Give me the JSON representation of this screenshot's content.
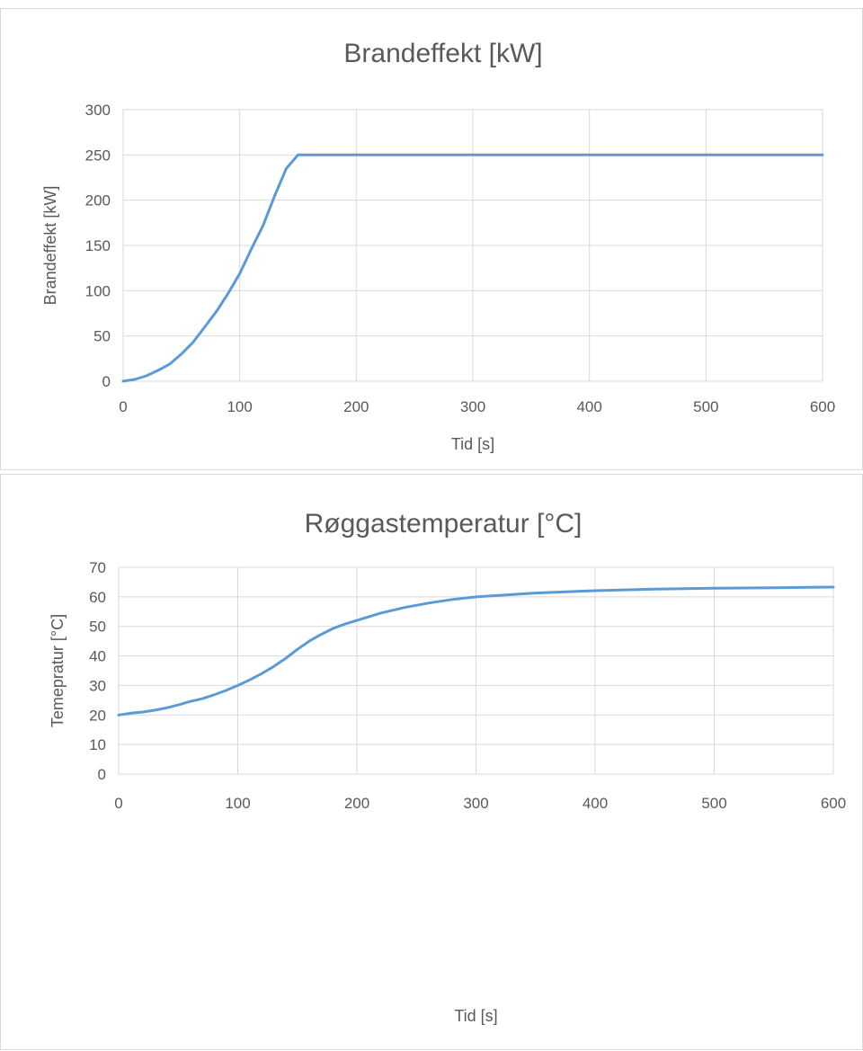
{
  "chart_data": [
    {
      "type": "line",
      "title": "Brandeffekt [kW]",
      "xlabel": "Tid [s]",
      "ylabel": "Brandeffekt [kW]",
      "xlim": [
        0,
        600
      ],
      "ylim": [
        0,
        300
      ],
      "x_ticks": [
        0,
        100,
        200,
        300,
        400,
        500,
        600
      ],
      "y_ticks": [
        0,
        50,
        100,
        150,
        200,
        250,
        300
      ],
      "grid": true,
      "series": [
        {
          "color": "#5b9bd5",
          "x": [
            0,
            10,
            20,
            30,
            40,
            50,
            60,
            70,
            80,
            90,
            100,
            110,
            120,
            130,
            140,
            150,
            200,
            300,
            400,
            500,
            600
          ],
          "y": [
            0,
            2,
            6,
            12,
            19,
            30,
            43,
            60,
            77,
            97,
            119,
            146,
            172,
            205,
            235,
            250,
            250,
            250,
            250,
            250,
            250
          ]
        }
      ]
    },
    {
      "type": "line",
      "title": "Røggastemperatur [°C]",
      "xlabel": "Tid [s]",
      "ylabel": "Temepratur [°C]",
      "xlim": [
        0,
        600
      ],
      "ylim": [
        0,
        70
      ],
      "x_ticks": [
        0,
        100,
        200,
        300,
        400,
        500,
        600
      ],
      "y_ticks": [
        0,
        10,
        20,
        30,
        40,
        50,
        60,
        70
      ],
      "grid": true,
      "series": [
        {
          "color": "#5b9bd5",
          "x": [
            0,
            10,
            20,
            30,
            40,
            50,
            60,
            70,
            80,
            90,
            100,
            110,
            120,
            130,
            140,
            150,
            160,
            170,
            180,
            190,
            200,
            220,
            240,
            260,
            280,
            300,
            350,
            400,
            450,
            500,
            550,
            600
          ],
          "y": [
            20,
            20.6,
            21,
            21.6,
            22.4,
            23.4,
            24.6,
            25.5,
            26.8,
            28.3,
            30,
            31.9,
            34,
            36.4,
            39.1,
            42.2,
            45,
            47.3,
            49.3,
            50.8,
            52,
            54.5,
            56.4,
            57.9,
            59.1,
            60,
            61.3,
            62.1,
            62.6,
            62.9,
            63.1,
            63.3
          ]
        }
      ]
    }
  ]
}
